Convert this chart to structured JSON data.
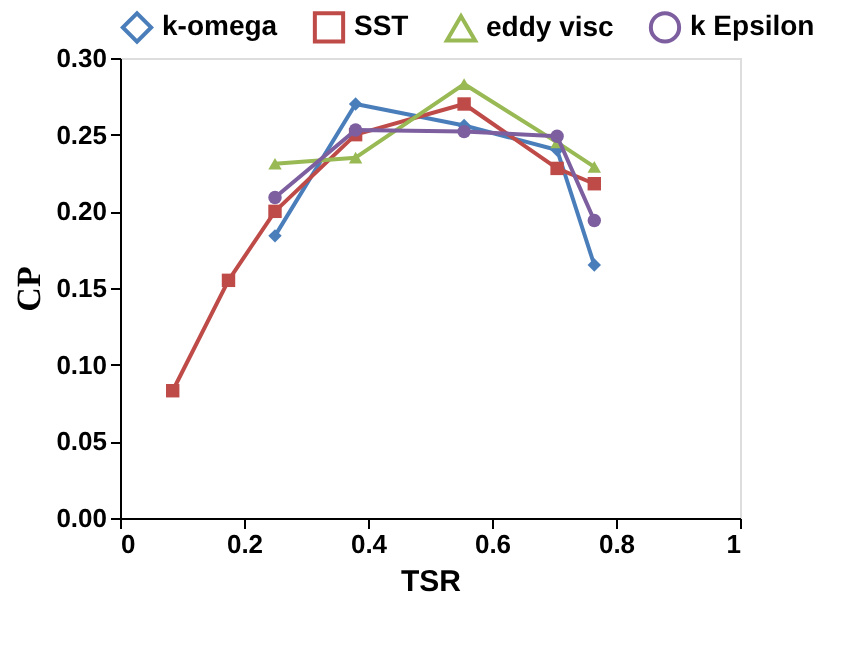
{
  "chart_data": {
    "type": "line",
    "xlabel": "TSR",
    "ylabel": "CP",
    "xlim": [
      0,
      1
    ],
    "xticks": [
      0,
      0.2,
      0.4,
      0.6,
      0.8,
      1
    ],
    "ylim": [
      0,
      0.3
    ],
    "yticks": [
      {
        "value": 0,
        "label": "0.00"
      },
      {
        "value": 0.05,
        "label": "0.05"
      },
      {
        "value": 0.1,
        "label": "0.10"
      },
      {
        "value": 0.15,
        "label": "0.15"
      },
      {
        "value": 0.2,
        "label": "0.20"
      },
      {
        "value": 0.25,
        "label": "0.25"
      },
      {
        "value": 0.3,
        "label": "0.30"
      }
    ],
    "grid": false,
    "legend": "top",
    "line_style": "solid",
    "series": [
      {
        "name": "k-omega",
        "color": "#4a7ebb",
        "marker": "diamond",
        "x": [
          0.25,
          0.38,
          0.555,
          0.705,
          0.765
        ],
        "values": [
          0.184,
          0.27,
          0.256,
          0.24,
          0.165
        ]
      },
      {
        "name": "SST",
        "color": "#be4b48",
        "marker": "square",
        "x": [
          0.085,
          0.175,
          0.25,
          0.38,
          0.555,
          0.705,
          0.765
        ],
        "values": [
          0.083,
          0.155,
          0.2,
          0.25,
          0.27,
          0.228,
          0.218
        ]
      },
      {
        "name": "eddy visc",
        "color": "#98b954",
        "marker": "triangle",
        "x": [
          0.25,
          0.38,
          0.555,
          0.705,
          0.765
        ],
        "values": [
          0.231,
          0.235,
          0.283,
          0.245,
          0.229
        ]
      },
      {
        "name": "k Epsilon",
        "color": "#7d5fa0",
        "marker": "circle",
        "x": [
          0.25,
          0.38,
          0.555,
          0.705,
          0.765
        ],
        "values": [
          0.209,
          0.253,
          0.252,
          0.249,
          0.194
        ]
      }
    ]
  }
}
